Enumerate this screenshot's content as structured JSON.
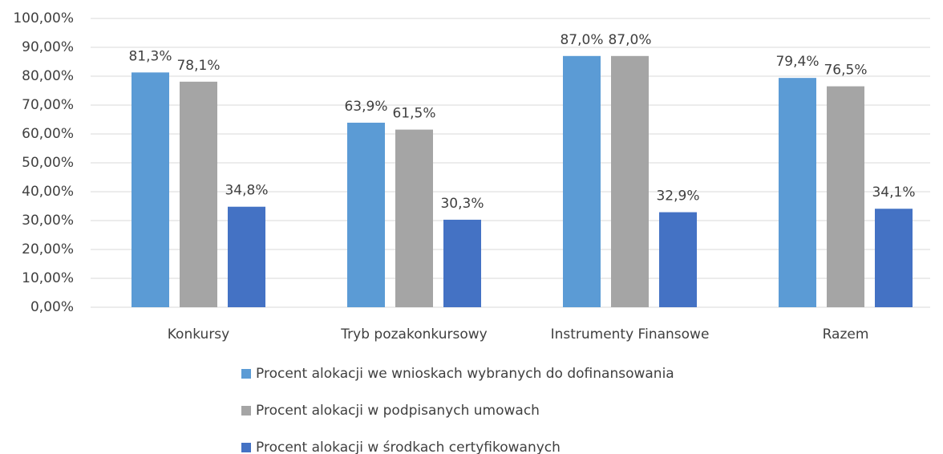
{
  "chart_data": {
    "type": "bar",
    "categories": [
      "Konkursy",
      "Tryb pozakonkursowy",
      "Instrumenty Finansowe",
      "Razem"
    ],
    "series": [
      {
        "name": "Procent alokacji we wnioskach wybranych do dofinansowania",
        "color": "#5b9bd5",
        "values": [
          81.3,
          63.9,
          87.0,
          79.4
        ],
        "value_labels": [
          "81,3%",
          "63,9%",
          "87,0%",
          "79,4%"
        ]
      },
      {
        "name": "Procent alokacji w podpisanych umowach",
        "color": "#a5a5a5",
        "values": [
          78.1,
          61.5,
          87.0,
          76.5
        ],
        "value_labels": [
          "78,1%",
          "61,5%",
          "87,0%",
          "76,5%"
        ]
      },
      {
        "name": "Procent alokacji w środkach certyfikowanych",
        "color": "#4472c4",
        "values": [
          34.8,
          30.3,
          32.9,
          34.1
        ],
        "value_labels": [
          "34,8%",
          "30,3%",
          "32,9%",
          "34,1%"
        ]
      }
    ],
    "ylim": [
      0,
      100
    ],
    "yticks": [
      {
        "value": 0,
        "label": "0,00%"
      },
      {
        "value": 10,
        "label": "10,00%"
      },
      {
        "value": 20,
        "label": "20,00%"
      },
      {
        "value": 30,
        "label": "30,00%"
      },
      {
        "value": 40,
        "label": "40,00%"
      },
      {
        "value": 50,
        "label": "50,00%"
      },
      {
        "value": 60,
        "label": "60,00%"
      },
      {
        "value": 70,
        "label": "70,00%"
      },
      {
        "value": 80,
        "label": "80,00%"
      },
      {
        "value": 90,
        "label": "90,00%"
      },
      {
        "value": 100,
        "label": "100,00%"
      }
    ],
    "grid": true,
    "legend": "bottom"
  }
}
